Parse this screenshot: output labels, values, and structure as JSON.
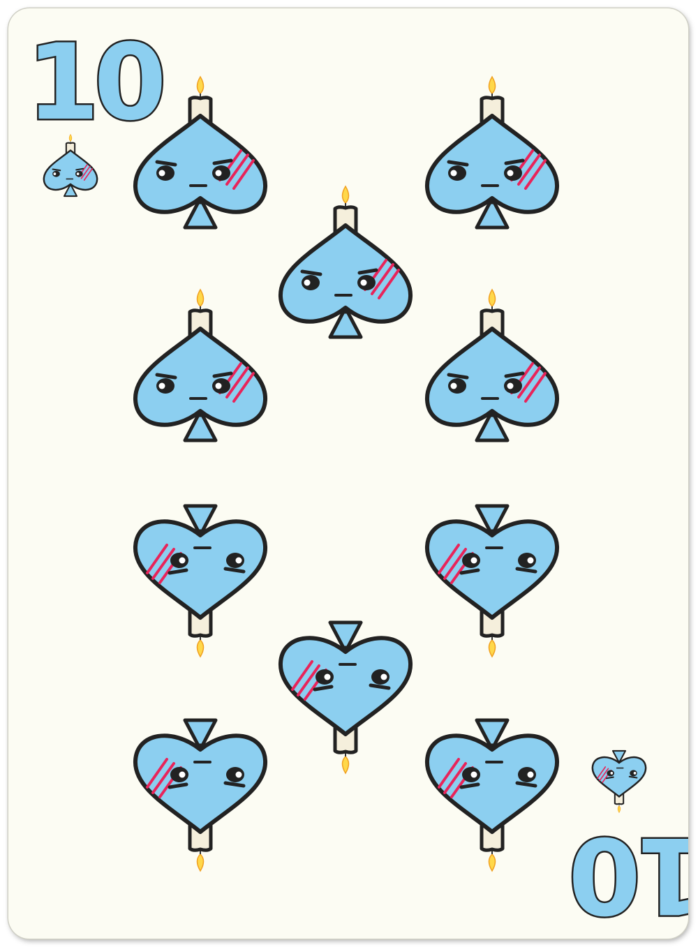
{
  "card": {
    "rank": "10",
    "suit": "spades",
    "pip_count": 10,
    "colors": {
      "background": "#fcfcf3",
      "suit_fill": "#8ccff0",
      "outline": "#222222",
      "candle": "#f5efdc",
      "flame": "#ffd84a",
      "scratch": "#e8245a"
    },
    "icon": "spade-candle-face-icon"
  }
}
